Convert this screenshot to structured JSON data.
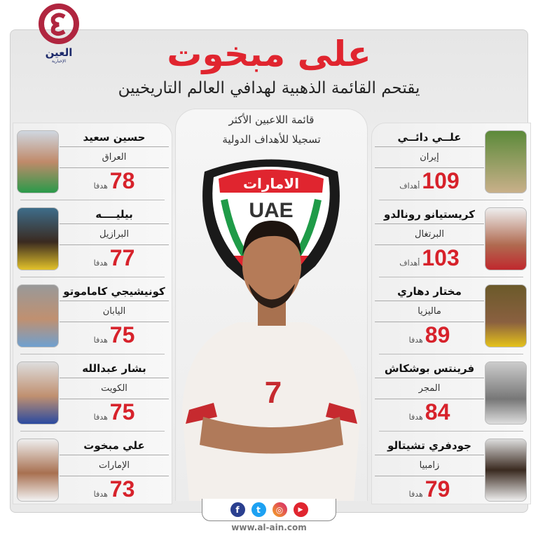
{
  "brand": {
    "logo_text": "العين",
    "logo_sub": "الإخبارية",
    "color": "#b0253f"
  },
  "header": {
    "title": "على مبخوت",
    "subtitle": "يقتحم القائمة الذهبية لهدافي العالم التاريخيين"
  },
  "center": {
    "line1": "قائمة اللاعبين الأكثر",
    "line2": "تسجيلا للأهداف الدولية",
    "shield_ar": "الامارات",
    "shield_en": "UAE",
    "shirt_number": "7"
  },
  "right_players": [
    {
      "name": "علــي دائــي",
      "country": "إيران",
      "goals": "109",
      "unit": "أهداف"
    },
    {
      "name": "كريستيانو رونالدو",
      "country": "البرتغال",
      "goals": "103",
      "unit": "أهداف"
    },
    {
      "name": "مختار دهاري",
      "country": "ماليزيا",
      "goals": "89",
      "unit": "هدفا"
    },
    {
      "name": "فرينتس بوشكاش",
      "country": "المجر",
      "goals": "84",
      "unit": "هدفا"
    },
    {
      "name": "جودفري تشيتالو",
      "country": "زامبيا",
      "goals": "79",
      "unit": "هدفا"
    }
  ],
  "left_players": [
    {
      "name": "حسين سعيد",
      "country": "العراق",
      "goals": "78",
      "unit": "هدفا"
    },
    {
      "name": "بيليــــه",
      "country": "البرازيل",
      "goals": "77",
      "unit": "هدفا"
    },
    {
      "name": "كونيشيجي كاماموتو",
      "country": "اليابان",
      "goals": "75",
      "unit": "هدفا"
    },
    {
      "name": "بشار عبدالله",
      "country": "الكويت",
      "goals": "75",
      "unit": "هدفا"
    },
    {
      "name": "علي مبخوت",
      "country": "الإمارات",
      "goals": "73",
      "unit": "هدفا"
    }
  ],
  "social": {
    "icons": [
      "facebook-icon",
      "twitter-icon",
      "instagram-icon",
      "youtube-icon"
    ],
    "fb": "f",
    "tw": "t",
    "ig": "◎",
    "yt": "▶"
  },
  "footer": {
    "url": "www.al-ain.com"
  },
  "colors": {
    "accent": "#e0252f",
    "number": "#d7222b"
  }
}
